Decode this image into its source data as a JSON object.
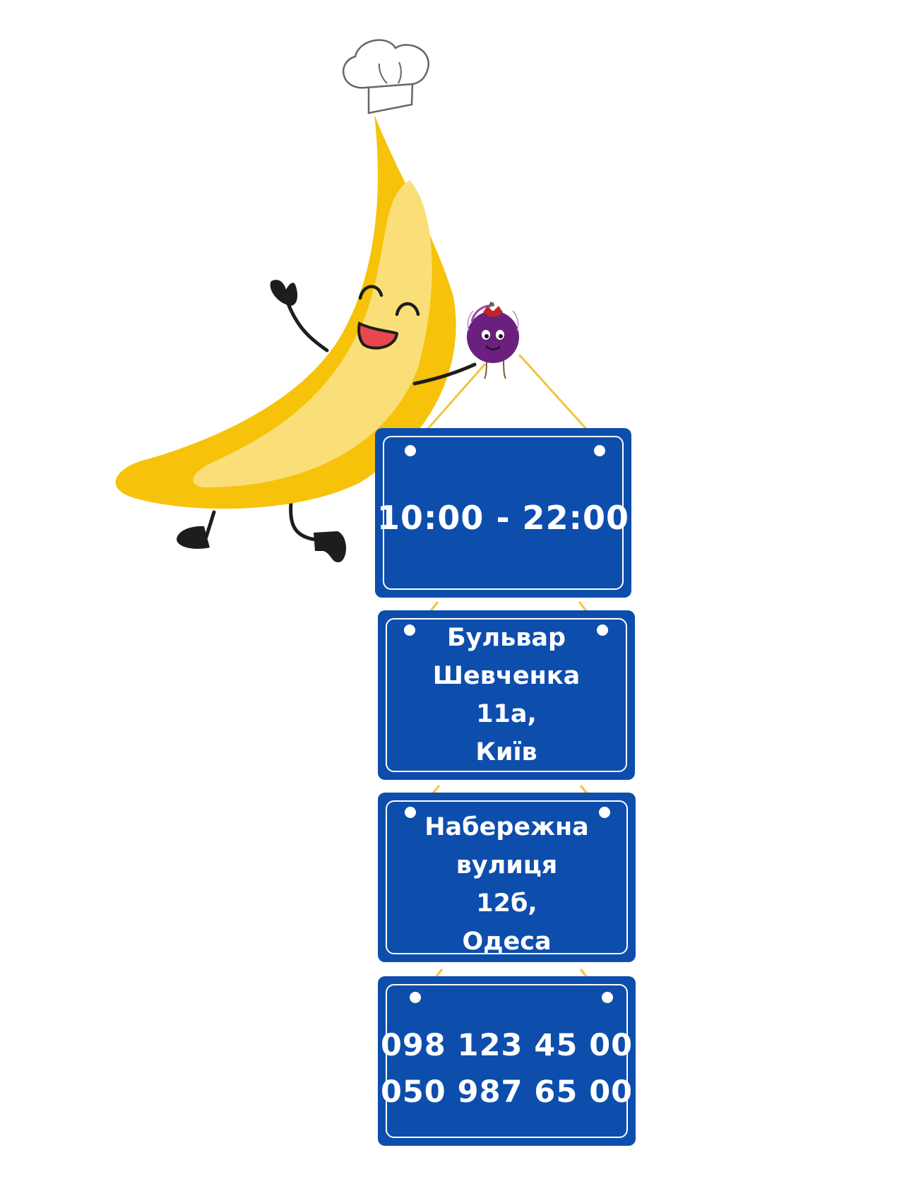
{
  "colors": {
    "sign_blue": "#0d4ead",
    "banana_yellow": "#f7c20a",
    "banana_light": "#fadf78",
    "string_yellow": "#f2c43c",
    "berry_purple": "#6b1f7f"
  },
  "icons": [
    "banana-chef-mascot",
    "chef-hat-icon",
    "berry-character-icon"
  ],
  "signs": {
    "hours": {
      "text": "10:00 - 22:00"
    },
    "kyiv": {
      "line1": "Бульвар",
      "line2": "Шевченка",
      "line3": "11а,",
      "line4": "Київ"
    },
    "odesa": {
      "line1": "Набережна",
      "line2": "вулиця",
      "line3": "12б,",
      "line4": "Одеса"
    },
    "phones": {
      "phone1": "098 123 45 00",
      "phone2": "050 987 65 00"
    }
  }
}
